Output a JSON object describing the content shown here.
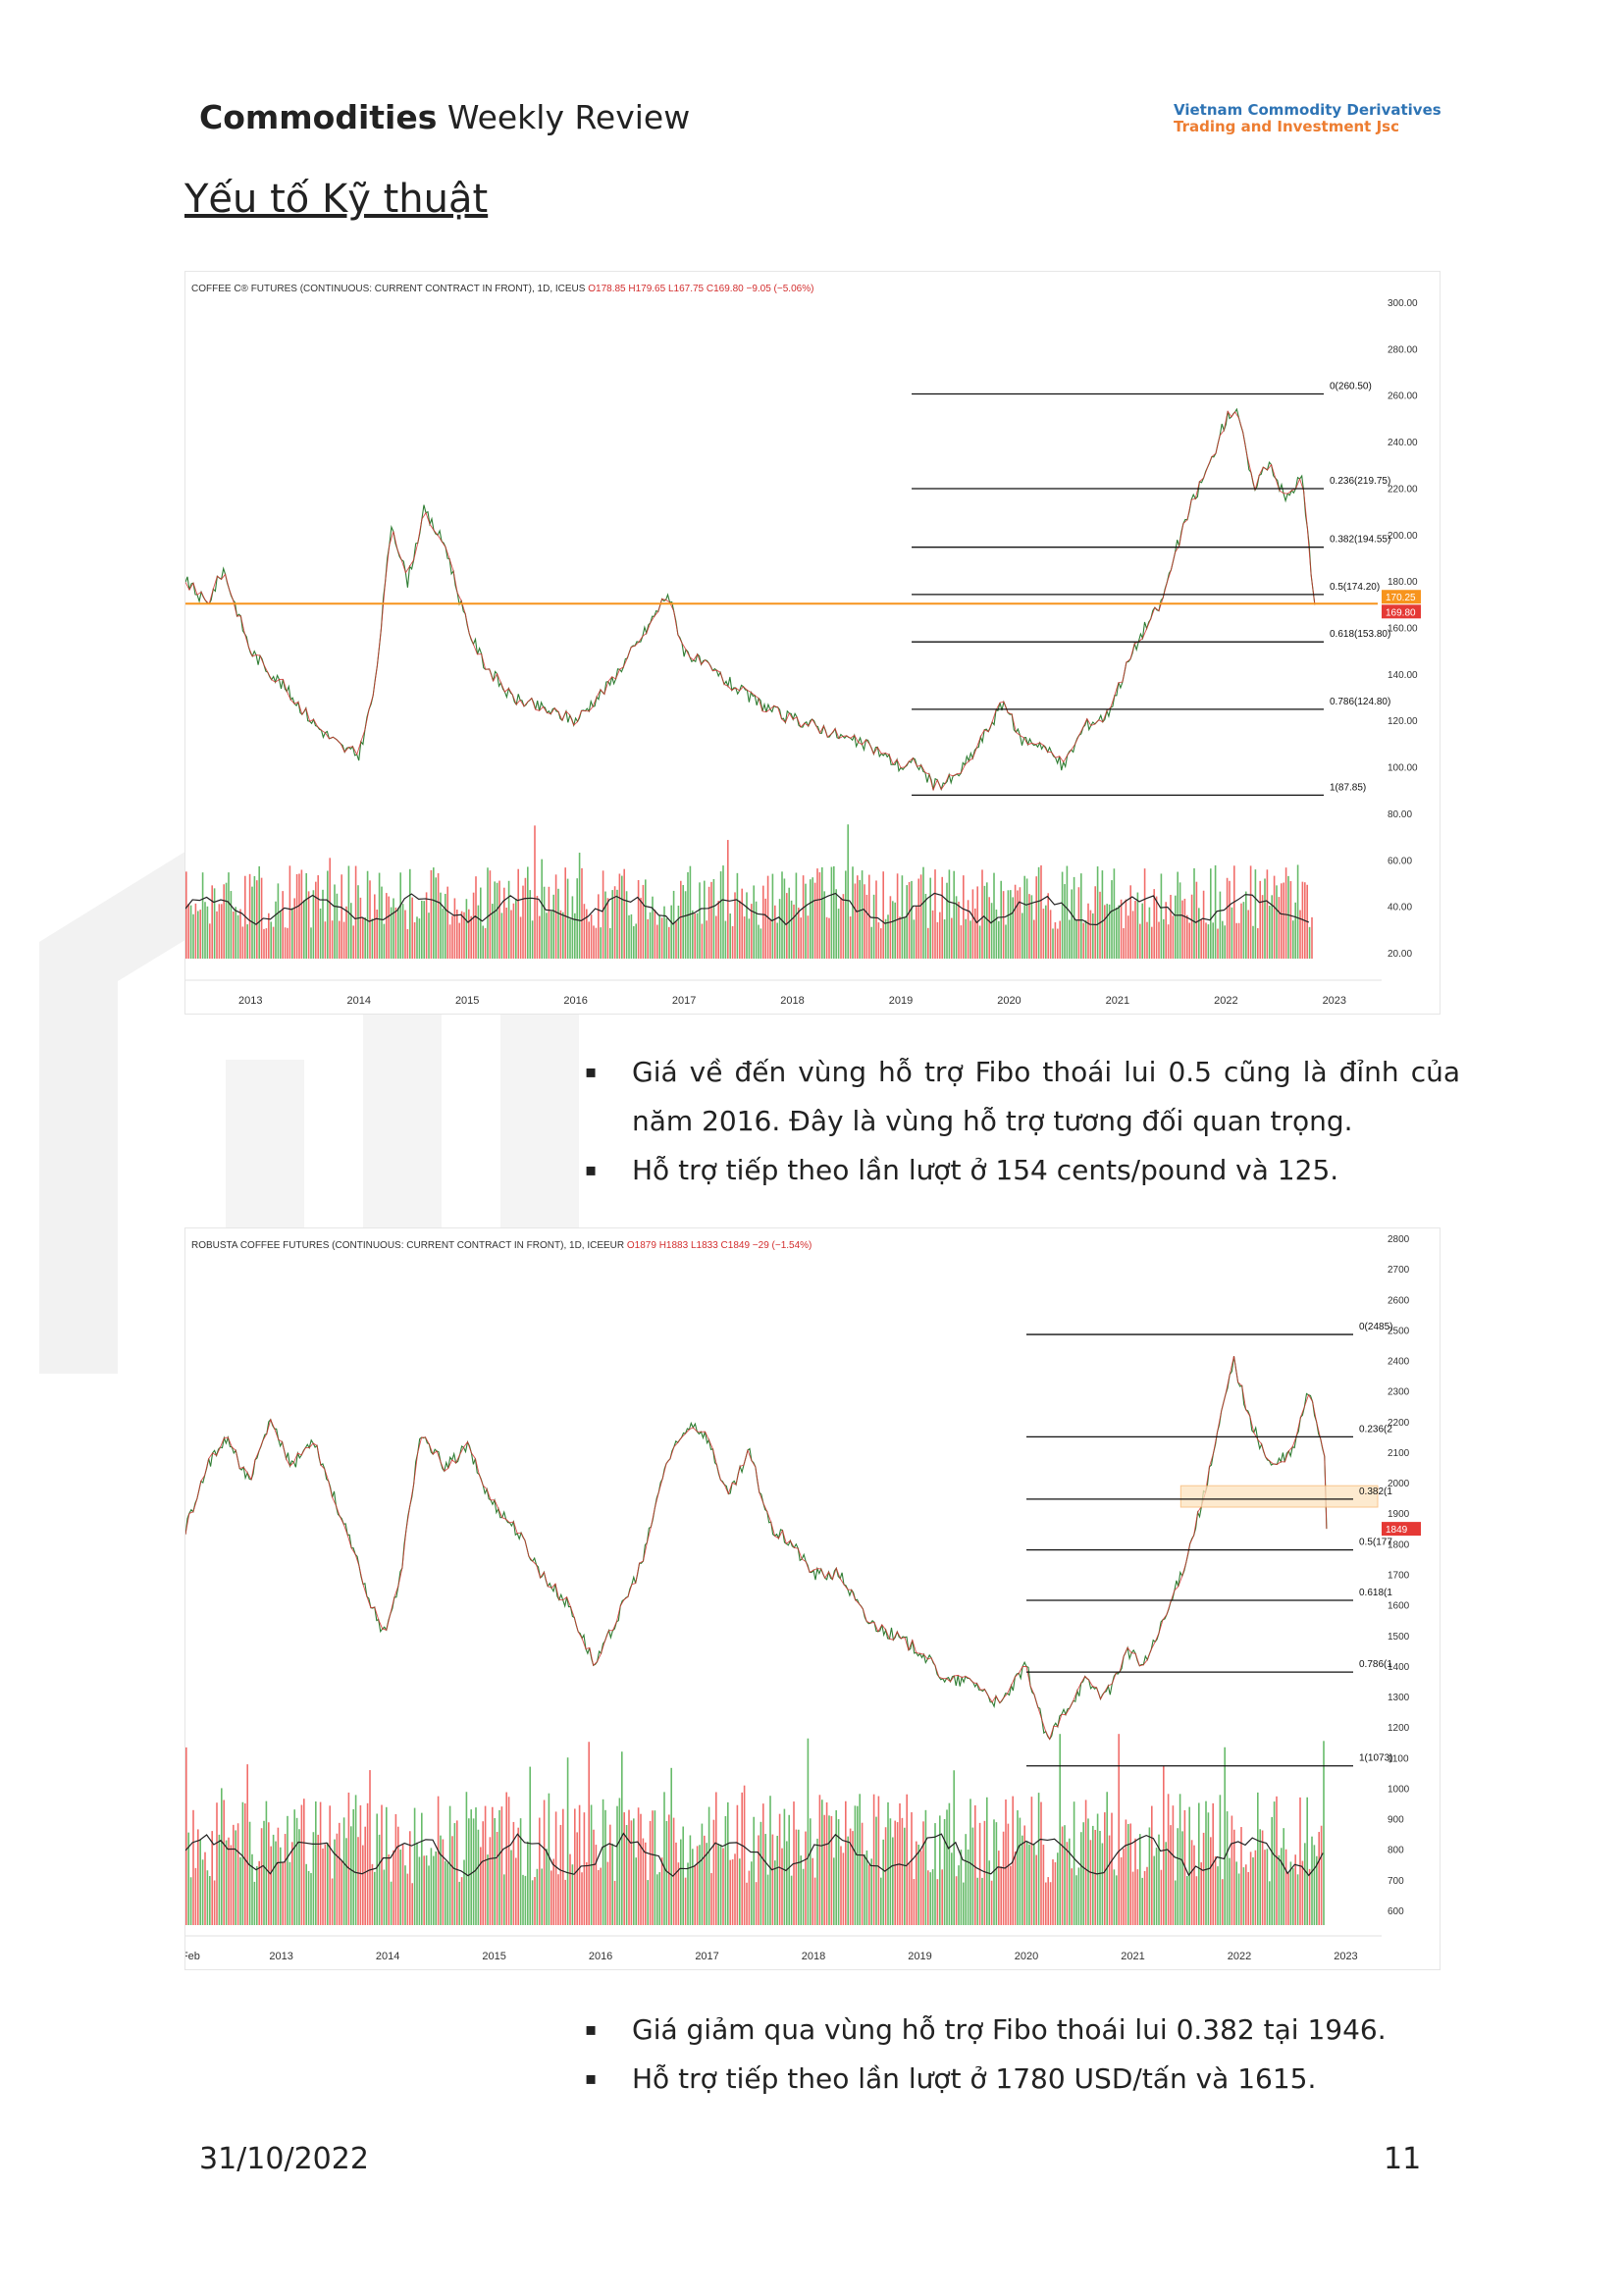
{
  "header": {
    "title_bold": "Commodities",
    "title_rest": " Weekly Review",
    "logo_line1": "Vietnam Commodity Derivatives",
    "logo_line2": "Trading and Investment Jsc"
  },
  "section_title": "Yếu tố Kỹ thuật",
  "chart_data": [
    {
      "type": "line",
      "title": "COFFEE C® FUTURES (CONTINUOUS: CURRENT CONTRACT IN FRONT), 1D, ICEUS",
      "ohlc_text": "O178.85 H179.65 L167.75 C169.80 −9.05 (−5.06%)",
      "x_ticks": [
        "2013",
        "2014",
        "2015",
        "2016",
        "2017",
        "2018",
        "2019",
        "2020",
        "2021",
        "2022",
        "2023"
      ],
      "y_ticks": [
        "300.00",
        "280.00",
        "260.00",
        "240.00",
        "220.00",
        "200.00",
        "180.00",
        "160.00",
        "140.00",
        "120.00",
        "100.00",
        "80.00",
        "60.00",
        "40.00",
        "20.00"
      ],
      "ylim": [
        20,
        300
      ],
      "x_range": [
        2012.4,
        2023.4
      ],
      "price_end": 2022.82,
      "price_labels": [
        {
          "text": "170.25",
          "color": "#f7941d"
        },
        {
          "text": "169.80",
          "color": "#e53935"
        }
      ],
      "fib_levels": [
        {
          "label": "0(260.50)",
          "value": 260.5
        },
        {
          "label": "0.236(219.75)",
          "value": 219.75
        },
        {
          "label": "0.382(194.55)",
          "value": 194.55
        },
        {
          "label": "0.5(174.20)",
          "value": 174.2
        },
        {
          "label": "0.618(153.80)",
          "value": 153.8
        },
        {
          "label": "0.786(124.80)",
          "value": 124.8
        },
        {
          "label": "1(87.85)",
          "value": 87.85
        }
      ],
      "fib_start": 2019.1,
      "horizontal_line": {
        "value": 170.25,
        "color": "#f7941d"
      },
      "series": [
        {
          "x": [
            2012.4,
            2012.6,
            2012.75,
            2013.0,
            2013.3,
            2013.6,
            2013.85,
            2014.0,
            2014.15,
            2014.3,
            2014.45,
            2014.6,
            2014.8,
            2015.0,
            2015.15,
            2015.4,
            2015.7,
            2016.0,
            2016.3,
            2016.6,
            2016.85,
            2017.0,
            2017.3,
            2017.6,
            2017.9,
            2018.2,
            2018.5,
            2018.75,
            2019.0,
            2019.15,
            2019.3,
            2019.5,
            2019.7,
            2019.95,
            2020.1,
            2020.3,
            2020.5,
            2020.7,
            2020.9,
            2021.1,
            2021.25,
            2021.4,
            2021.55,
            2021.7,
            2021.85,
            2022.0,
            2022.1,
            2022.25,
            2022.4,
            2022.55,
            2022.7,
            2022.82
          ],
          "values": [
            180,
            170,
            185,
            150,
            135,
            118,
            108,
            105,
            135,
            205,
            180,
            210,
            195,
            160,
            145,
            130,
            125,
            120,
            135,
            155,
            175,
            150,
            140,
            130,
            122,
            118,
            112,
            108,
            100,
            102,
            92,
            95,
            108,
            128,
            112,
            110,
            100,
            118,
            122,
            145,
            160,
            170,
            195,
            215,
            230,
            250,
            255,
            220,
            232,
            215,
            225,
            169.8
          ]
        }
      ],
      "volume_ylim": [
        0,
        80
      ]
    },
    {
      "type": "line",
      "title": "ROBUSTA COFFEE FUTURES (CONTINUOUS: CURRENT CONTRACT IN FRONT), 1D, ICEEUR",
      "ohlc_text": "O1879 H1883 L1833 C1849 −29 (−1.54%)",
      "x_ticks": [
        "Feb",
        "2013",
        "2014",
        "2015",
        "2016",
        "2017",
        "2018",
        "2019",
        "2020",
        "2021",
        "2022",
        "2023"
      ],
      "y_ticks": [
        "2800",
        "2700",
        "2600",
        "2500",
        "2400",
        "2300",
        "2200",
        "2100",
        "2000",
        "1900",
        "1800",
        "1700",
        "1600",
        "1500",
        "1400",
        "1300",
        "1200",
        "1100",
        "1000",
        "900",
        "800",
        "700",
        "600"
      ],
      "ylim": [
        600,
        2800
      ],
      "x_range": [
        2012.1,
        2023.3
      ],
      "price_end": 2022.82,
      "price_labels": [
        {
          "text": "1849",
          "color": "#e53935"
        }
      ],
      "fib_levels": [
        {
          "label": "0(2485)",
          "value": 2485
        },
        {
          "label": "0.236(2",
          "value": 2150
        },
        {
          "label": "0.382(1",
          "value": 1946
        },
        {
          "label": "0.5(177",
          "value": 1780
        },
        {
          "label": "0.618(1",
          "value": 1615
        },
        {
          "label": "0.786(1",
          "value": 1380
        },
        {
          "label": "1(1073)",
          "value": 1073
        }
      ],
      "fib_start": 2020.0,
      "highlight_zone": [
        1920,
        1990
      ],
      "series": [
        {
          "x": [
            2012.1,
            2012.3,
            2012.5,
            2012.7,
            2012.9,
            2013.1,
            2013.3,
            2013.55,
            2013.75,
            2013.95,
            2014.1,
            2014.3,
            2014.55,
            2014.75,
            2014.95,
            2015.2,
            2015.45,
            2015.7,
            2015.95,
            2016.15,
            2016.4,
            2016.6,
            2016.85,
            2017.0,
            2017.2,
            2017.4,
            2017.6,
            2017.8,
            2018.0,
            2018.25,
            2018.5,
            2018.75,
            2019.0,
            2019.25,
            2019.5,
            2019.75,
            2020.0,
            2020.2,
            2020.35,
            2020.55,
            2020.75,
            2020.95,
            2021.1,
            2021.3,
            2021.5,
            2021.7,
            2021.85,
            2021.95,
            2022.1,
            2022.3,
            2022.5,
            2022.65,
            2022.8,
            2022.82
          ],
          "values": [
            1850,
            2050,
            2150,
            2000,
            2200,
            2050,
            2150,
            1900,
            1700,
            1500,
            1650,
            2150,
            2050,
            2120,
            1950,
            1850,
            1700,
            1600,
            1400,
            1550,
            1750,
            2050,
            2200,
            2150,
            1950,
            2100,
            1850,
            1800,
            1700,
            1700,
            1550,
            1500,
            1450,
            1350,
            1350,
            1270,
            1400,
            1150,
            1250,
            1350,
            1300,
            1450,
            1400,
            1550,
            1750,
            2000,
            2250,
            2400,
            2200,
            2050,
            2100,
            2300,
            2100,
            1849
          ]
        }
      ],
      "volume_ylim": [
        600,
        1100
      ]
    }
  ],
  "bullets1": [
    "Giá về đến vùng hỗ trợ Fibo thoái lui 0.5 cũng là đỉnh của năm 2016. Đây là vùng hỗ trợ tương đối quan trọng.",
    "Hỗ trợ tiếp theo lần lượt ở 154 cents/pound và 125."
  ],
  "bullets2": [
    "Giá giảm qua vùng hỗ trợ Fibo thoái lui 0.382 tại 1946.",
    "Hỗ trợ tiếp theo lần lượt ở 1780 USD/tấn và 1615."
  ],
  "footer": {
    "date": "31/10/2022",
    "page": "11"
  }
}
